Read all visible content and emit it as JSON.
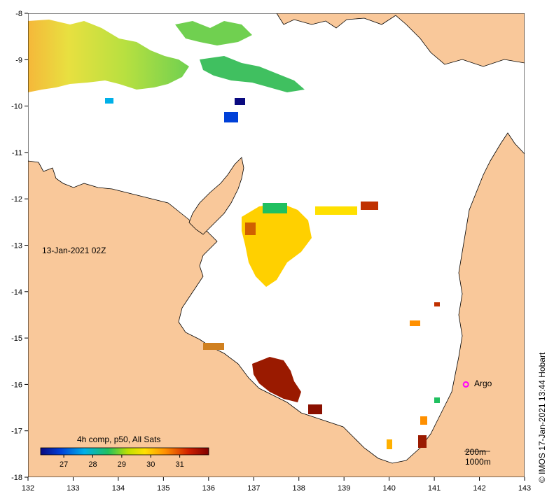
{
  "map": {
    "timestamp": "13-Jan-2021 02Z",
    "credit": "© IMOS 17-Jan-2021 13:44 Hobart",
    "x_ticks": [
      "132",
      "133",
      "134",
      "135",
      "136",
      "137",
      "138",
      "139",
      "140",
      "141",
      "142",
      "143"
    ],
    "y_ticks": [
      "-8",
      "-9",
      "-10",
      "-11",
      "-12",
      "-13",
      "-14",
      "-15",
      "-16",
      "-17",
      "-18"
    ],
    "x_range": [
      132,
      143
    ],
    "y_range": [
      -18,
      -8
    ],
    "land_color": "#f9c89a",
    "sea_color": "#ffffff"
  },
  "legend": {
    "title": "4h comp, p50, All Sats",
    "ticks": [
      "27",
      "28",
      "29",
      "30",
      "31"
    ],
    "tick_values": [
      27,
      28,
      29,
      30,
      31
    ],
    "range": [
      26.2,
      32
    ],
    "colors": [
      "#0a0a80",
      "#0040d8",
      "#00b0e8",
      "#20c060",
      "#c0e000",
      "#ffe000",
      "#ff9000",
      "#d02000",
      "#800000"
    ]
  },
  "argo": {
    "label": "Argo",
    "lon": 141.7,
    "lat": -16.0,
    "color": "#ff00ff"
  },
  "scale": {
    "label_top": "200m",
    "label_bottom": "1000m"
  }
}
